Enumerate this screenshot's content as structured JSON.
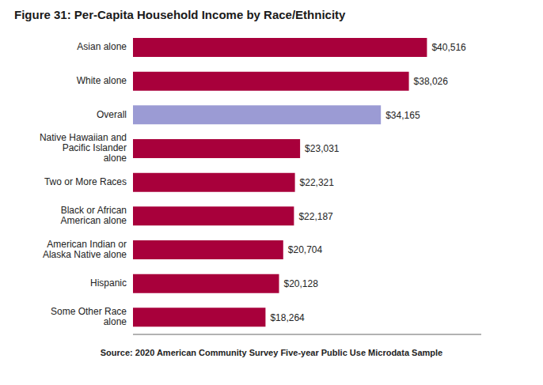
{
  "chart_data": {
    "type": "bar",
    "orientation": "horizontal",
    "title": "Figure 31: Per-Capita Household Income by Race/Ethnicity",
    "annotations": [
      "Source: 2020 American Community Survey Five-year Public Use Microdata Sample"
    ],
    "categories": [
      "Some Other Race\nalone",
      "Hispanic",
      "American Indian or\nAlaska Native alone",
      "Black or African\nAmerican alone",
      "Two or More Races",
      "Native Hawaiian and\nPacific Islander\nalone",
      "Overall",
      "White alone",
      "Asian alone"
    ],
    "values": [
      18264,
      20128,
      20704,
      22187,
      22321,
      23031,
      34165,
      38026,
      40516
    ],
    "value_labels": [
      "$18,264",
      "$20,128",
      "$20,704",
      "$22,187",
      "$22,321",
      "$23,031",
      "$34,165",
      "$38,026",
      "$40,516"
    ],
    "data_labels": true,
    "colors": [
      "#A8003B",
      "#A8003B",
      "#A8003B",
      "#A8003B",
      "#A8003B",
      "#A8003B",
      "#9B9BD4",
      "#A8003B",
      "#A8003B"
    ],
    "xlim": [
      0,
      48000
    ],
    "tick_labels": "y",
    "grid": false
  }
}
